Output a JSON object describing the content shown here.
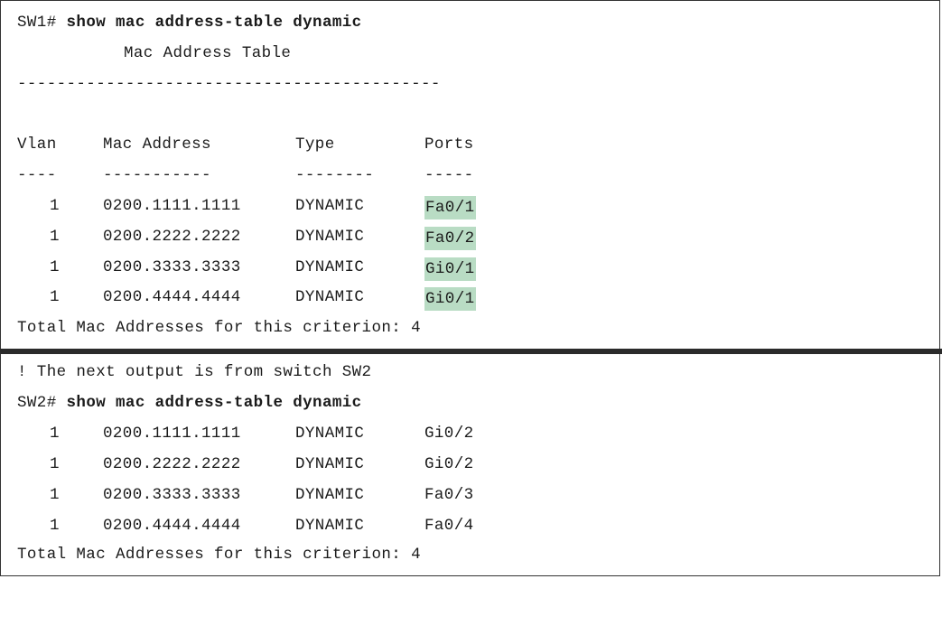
{
  "sw1": {
    "prompt": "SW1#",
    "command": "show mac address-table dynamic",
    "table_title": "Mac Address Table",
    "separator": "-------------------------------------------",
    "headers": {
      "vlan": "Vlan",
      "mac": "Mac Address",
      "type": "Type",
      "ports": "Ports"
    },
    "header_rule": {
      "vlan": "----",
      "mac": "-----------",
      "type": "--------",
      "ports": "-----"
    },
    "rows": [
      {
        "vlan": "1",
        "mac": "0200.1111.1111",
        "type": "DYNAMIC",
        "port": "Fa0/1"
      },
      {
        "vlan": "1",
        "mac": "0200.2222.2222",
        "type": "DYNAMIC",
        "port": "Fa0/2"
      },
      {
        "vlan": "1",
        "mac": "0200.3333.3333",
        "type": "DYNAMIC",
        "port": "Gi0/1"
      },
      {
        "vlan": "1",
        "mac": "0200.4444.4444",
        "type": "DYNAMIC",
        "port": "Gi0/1"
      }
    ],
    "total": "Total Mac Addresses for this criterion: 4",
    "highlight_color": "#b9dcc4"
  },
  "sw2": {
    "comment": "! The next output is from switch SW2",
    "prompt": "SW2#",
    "command": "show mac address-table dynamic",
    "rows": [
      {
        "vlan": "1",
        "mac": "0200.1111.1111",
        "type": "DYNAMIC",
        "port": "Gi0/2"
      },
      {
        "vlan": "1",
        "mac": "0200.2222.2222",
        "type": "DYNAMIC",
        "port": "Gi0/2"
      },
      {
        "vlan": "1",
        "mac": "0200.3333.3333",
        "type": "DYNAMIC",
        "port": "Fa0/3"
      },
      {
        "vlan": "1",
        "mac": "0200.4444.4444",
        "type": "DYNAMIC",
        "port": "Fa0/4"
      }
    ],
    "total": "Total Mac Addresses for this criterion: 4"
  }
}
